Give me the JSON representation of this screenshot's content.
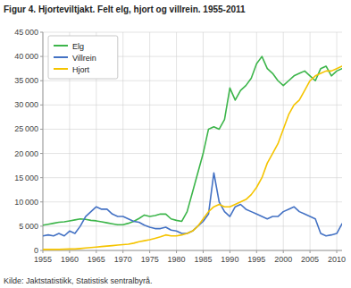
{
  "chart_data": {
    "type": "line",
    "title": "Figur 4. Hjorteviltjakt. Felt elg, hjort og villrein. 1955-2011",
    "annotations": [
      "Kilde: Jaktstatistikk, Statistisk sentralbyrå."
    ],
    "x": [
      1955,
      1956,
      1957,
      1958,
      1959,
      1960,
      1961,
      1962,
      1963,
      1964,
      1965,
      1966,
      1967,
      1968,
      1969,
      1970,
      1971,
      1972,
      1973,
      1974,
      1975,
      1976,
      1977,
      1978,
      1979,
      1980,
      1981,
      1982,
      1983,
      1984,
      1985,
      1986,
      1987,
      1988,
      1989,
      1990,
      1991,
      1992,
      1993,
      1994,
      1995,
      1996,
      1997,
      1998,
      1999,
      2000,
      2001,
      2002,
      2003,
      2004,
      2005,
      2006,
      2007,
      2008,
      2009,
      2010,
      2011
    ],
    "series": [
      {
        "name": "Elg",
        "color": "#3cb54a",
        "values": [
          5200,
          5400,
          5600,
          5800,
          5900,
          6100,
          6300,
          6500,
          6400,
          6200,
          6100,
          5900,
          5700,
          5500,
          5300,
          5300,
          5600,
          6000,
          6600,
          7300,
          7000,
          7200,
          7500,
          7500,
          6500,
          6200,
          6000,
          8000,
          12000,
          16000,
          20000,
          25000,
          25500,
          25000,
          27000,
          33500,
          31000,
          33000,
          34000,
          35500,
          38500,
          40000,
          37500,
          36500,
          35000,
          34000,
          35000,
          36000,
          36500,
          37000,
          36000,
          35000,
          37500,
          38000,
          36000,
          37000,
          37500
        ]
      },
      {
        "name": "Villrein",
        "color": "#4472c4",
        "values": [
          3000,
          3200,
          3000,
          3500,
          3000,
          4000,
          3500,
          5000,
          7000,
          8000,
          9000,
          8500,
          8500,
          7500,
          7000,
          7000,
          6500,
          6000,
          5800,
          5200,
          4800,
          4500,
          4500,
          4800,
          4200,
          4000,
          3500,
          3500,
          4000,
          5000,
          6000,
          7500,
          16000,
          10000,
          8000,
          7000,
          9000,
          9500,
          8500,
          8000,
          7500,
          7000,
          6500,
          7000,
          7000,
          8000,
          8500,
          9000,
          8000,
          7500,
          7000,
          6500,
          3500,
          3000,
          3200,
          3500,
          5500
        ]
      },
      {
        "name": "Hjort",
        "color": "#f5c400",
        "values": [
          200,
          200,
          200,
          200,
          250,
          300,
          300,
          400,
          500,
          600,
          700,
          800,
          900,
          1000,
          1100,
          1200,
          1300,
          1500,
          1800,
          2000,
          2200,
          2500,
          2800,
          3200,
          3000,
          3000,
          3200,
          3500,
          4000,
          5000,
          6500,
          8000,
          9000,
          9500,
          9000,
          9000,
          9500,
          10000,
          10500,
          11500,
          13000,
          15000,
          18000,
          20000,
          22000,
          25000,
          28000,
          30000,
          31000,
          33000,
          35000,
          36000,
          36500,
          37000,
          37000,
          37500,
          38000
        ]
      }
    ],
    "xlim": [
      1955,
      2011
    ],
    "xticks": [
      1955,
      1960,
      1965,
      1970,
      1975,
      1980,
      1985,
      1990,
      1995,
      2000,
      2005,
      2010
    ],
    "ylim": [
      0,
      45000
    ],
    "yticks": [
      0,
      {
        "value": 5000,
        "label": "5 000"
      },
      {
        "value": 10000,
        "label": "10 000"
      },
      {
        "value": 15000,
        "label": "15 000"
      },
      {
        "value": 20000,
        "label": "20 000"
      },
      {
        "value": 25000,
        "label": "25 000"
      },
      {
        "value": 30000,
        "label": "30 000"
      },
      {
        "value": 35000,
        "label": "35 000"
      },
      {
        "value": 40000,
        "label": "40 000"
      },
      {
        "value": 45000,
        "label": "45 000"
      }
    ],
    "grid": true,
    "legend": "upper-left"
  }
}
